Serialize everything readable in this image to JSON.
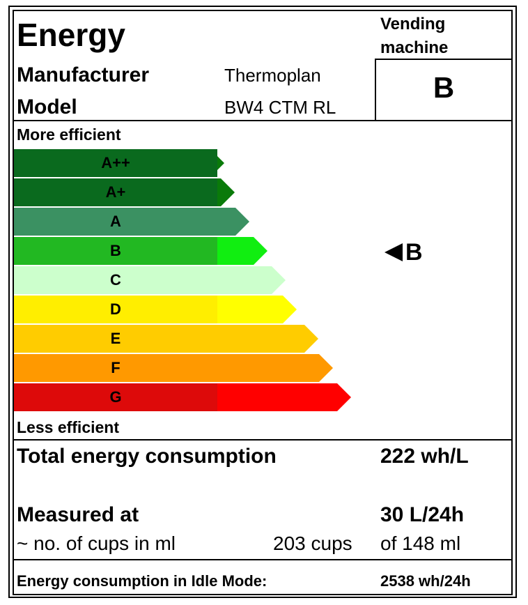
{
  "header": {
    "title": "Energy",
    "category": "Vending machine",
    "manufacturer_label": "Manufacturer",
    "manufacturer_value": "Thermoplan",
    "model_label": "Model",
    "model_value": "BW4 CTM RL",
    "rating": "B"
  },
  "scale": {
    "more_efficient": "More efficient",
    "less_efficient": "Less efficient",
    "classes": [
      {
        "label": "A++",
        "dark": "#0a6a1e",
        "tip": "#0a7a0a",
        "length": 0.58
      },
      {
        "label": "A+",
        "dark": "#0a6a1e",
        "tip": "#0a7a0a",
        "length": 0.61
      },
      {
        "label": "A",
        "dark": "#3b9162",
        "tip": "#3b9162",
        "length": 0.65
      },
      {
        "label": "B",
        "dark": "#22b822",
        "tip": "#11ee11",
        "length": 0.7
      },
      {
        "label": "C",
        "dark": "#ccffcc",
        "tip": "#ccffcc",
        "length": 0.75
      },
      {
        "label": "D",
        "dark": "#ffee00",
        "tip": "#ffff00",
        "length": 0.78
      },
      {
        "label": "E",
        "dark": "#ffcc00",
        "tip": "#ffcc00",
        "length": 0.84
      },
      {
        "label": "F",
        "dark": "#ff9900",
        "tip": "#ff9900",
        "length": 0.88
      },
      {
        "label": "G",
        "dark": "#dd0a0a",
        "tip": "#ff0000",
        "length": 0.93
      }
    ],
    "indicator": "B"
  },
  "consumption": {
    "total_label": "Total energy consumption",
    "total_value": "222 wh/L",
    "measured_label": "Measured at",
    "measured_value": "30 L/24h",
    "cups_label": "~ no. of cups in ml",
    "cups_count": "203 cups",
    "cups_size": "of 148 ml",
    "idle_label": "Energy consumption in Idle Mode:",
    "idle_value": "2538 wh/24h"
  }
}
